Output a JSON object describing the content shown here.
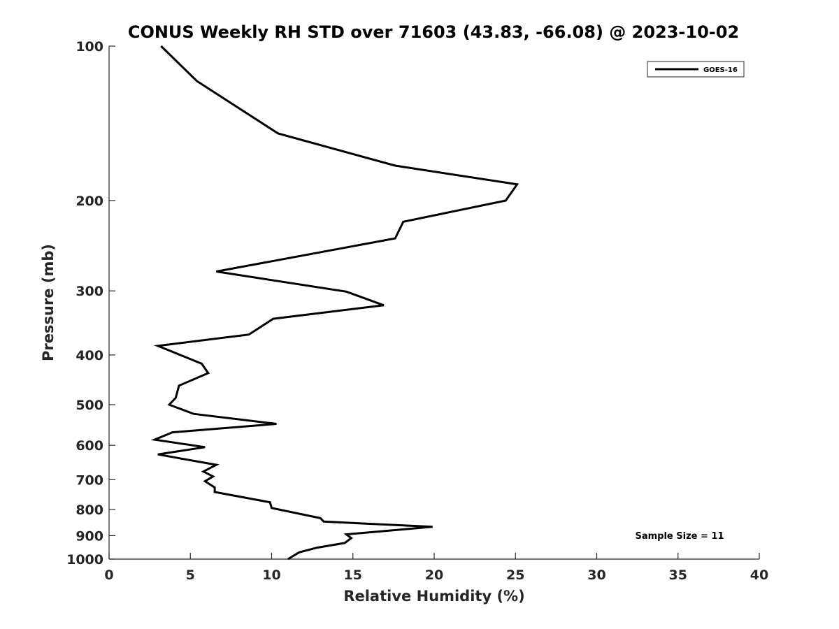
{
  "chart_data": {
    "type": "line",
    "title": "CONUS Weekly RH STD over 71603 (43.83, -66.08) @ 2023-10-02",
    "xlabel": "Relative Humidity (%)",
    "ylabel": "Pressure (mb)",
    "xlim": [
      0,
      40
    ],
    "ylim": [
      100,
      1000
    ],
    "y_scale": "log",
    "y_reversed": true,
    "x_ticks": [
      0,
      5,
      10,
      15,
      20,
      25,
      30,
      35,
      40
    ],
    "x_tick_labels": [
      "0",
      "5",
      "10",
      "15",
      "20",
      "25",
      "30",
      "35",
      "40"
    ],
    "y_ticks": [
      100,
      200,
      300,
      400,
      500,
      600,
      700,
      800,
      900,
      1000
    ],
    "y_tick_labels": [
      "100",
      "200",
      "300",
      "400",
      "500",
      "600",
      "700",
      "800",
      "900",
      "1000"
    ],
    "grid": false,
    "legend_position": "top-right",
    "annotation": "Sample Size = 11",
    "line_color": "#000000",
    "series": [
      {
        "name": "GOES-16",
        "x": [
          3.2,
          5.4,
          10.4,
          17.6,
          25.1,
          24.4,
          18.1,
          17.6,
          6.6,
          14.6,
          16.9,
          10.1,
          8.6,
          3.0,
          5.7,
          6.1,
          4.3,
          4.1,
          3.7,
          5.2,
          10.3,
          3.9,
          2.8,
          5.9,
          3.0,
          6.6,
          5.8,
          6.4,
          5.9,
          6.5,
          6.5,
          9.9,
          10.0,
          13.0,
          13.2,
          19.9,
          14.6,
          14.9,
          14.5,
          12.8,
          11.7,
          11.0
        ],
        "y": [
          100,
          117,
          148,
          171,
          186,
          200,
          220,
          237,
          275,
          301,
          320,
          340,
          365,
          384,
          416,
          434,
          459,
          485,
          500,
          521,
          545,
          566,
          585,
          605,
          625,
          655,
          675,
          690,
          705,
          725,
          740,
          775,
          795,
          832,
          845,
          865,
          895,
          910,
          930,
          950,
          970,
          1000
        ]
      }
    ]
  }
}
